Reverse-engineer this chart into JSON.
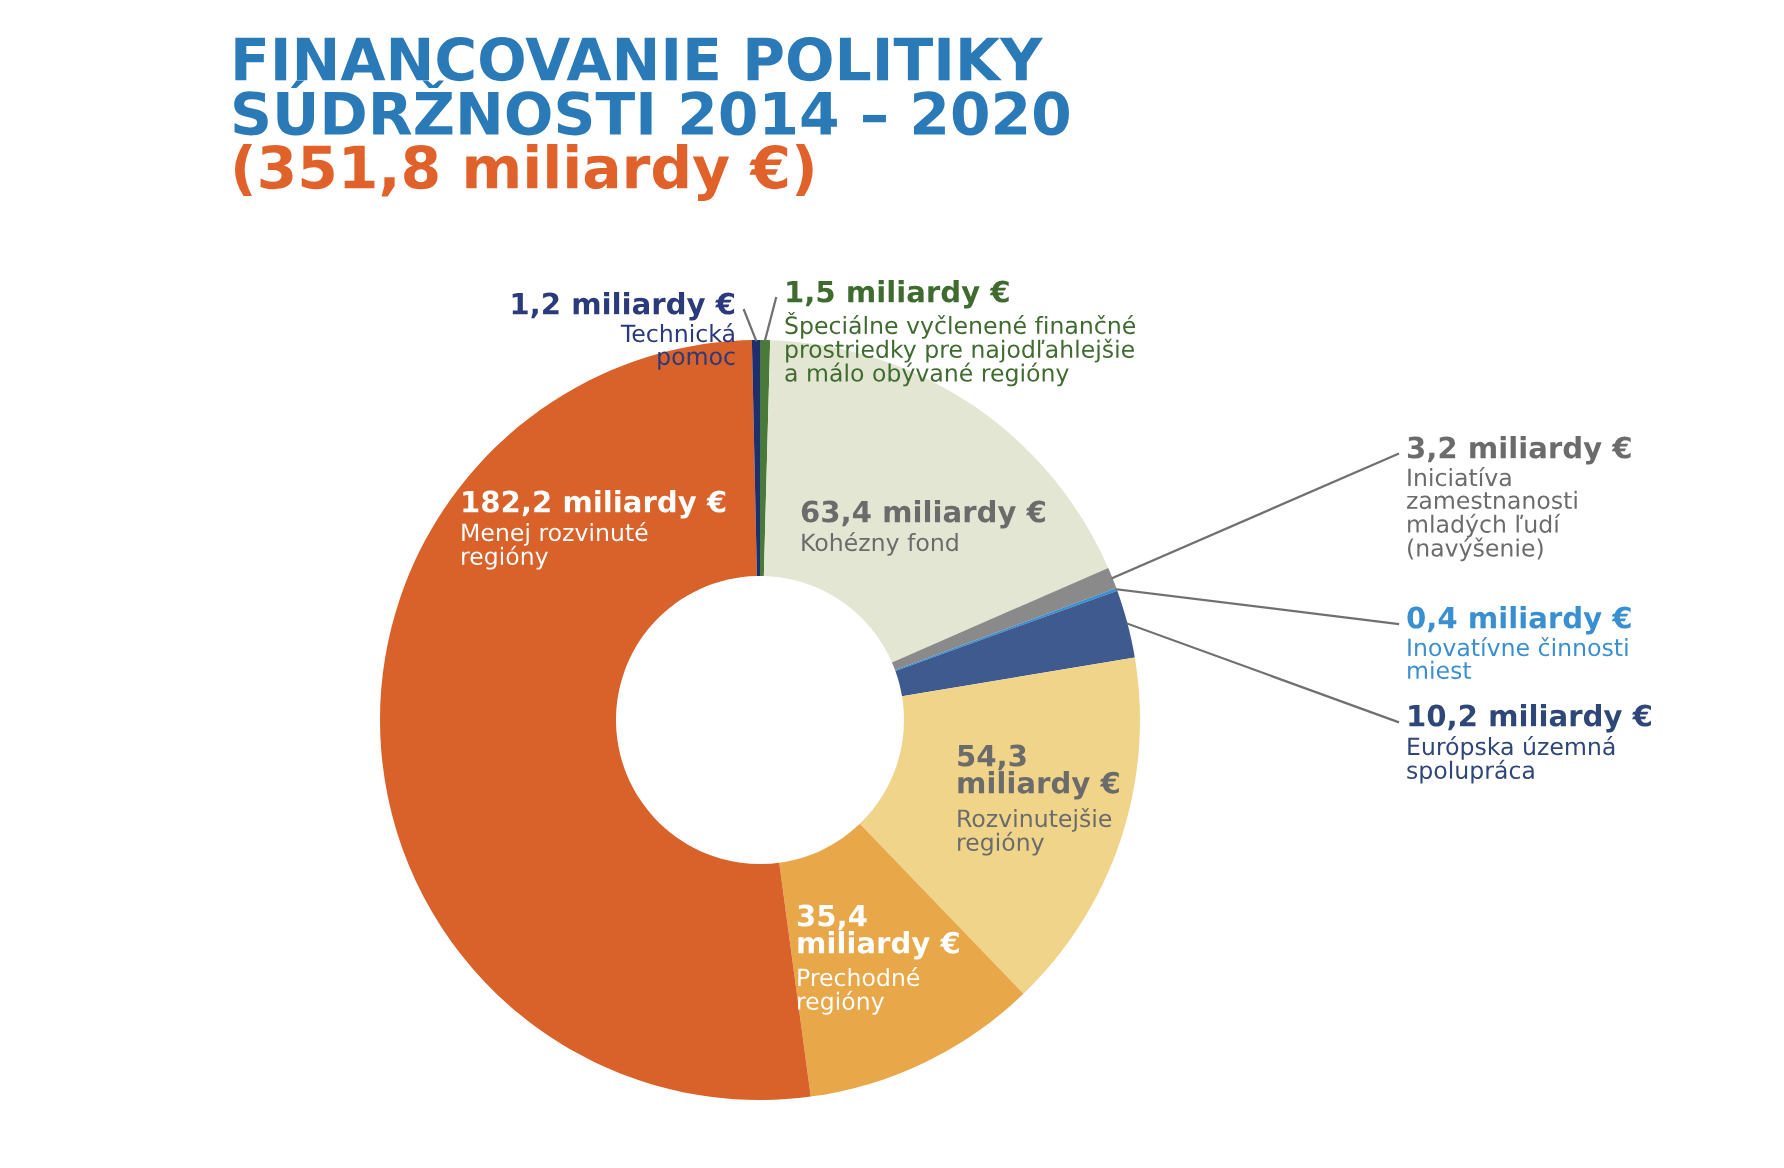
{
  "chart_data": {
    "type": "donut",
    "title": "FINANCOVANIE POLITIKY\nSÚDRŽNOSTI 2014 – 2020",
    "subtitle": "(351,8 miliardy €)",
    "categories": [
      "Špeciálne vyčlenené finančné\nprostriedky pre najodľahlejšie\na málo obývané regióny",
      "Kohézny fond",
      "Iniciatíva\nzamestnanosti\nmladých ľudí\n(navýšenie)",
      "Inovatívne činnosti\nmiest",
      "Európska územná\nspolupráca",
      "Rozvinutejšie\nregióny",
      "Prechodné\nregióny",
      "Menej rozvinuté\nregióny",
      "Technická\npomoc"
    ],
    "values": [
      1.5,
      63.4,
      3.2,
      0.4,
      10.2,
      54.3,
      35.4,
      182.2,
      1.2
    ],
    "value_labels": [
      "1,5 miliardy €",
      "63,4 miliardy €",
      "3,2 miliardy €",
      "0,4 miliardy €",
      "10,2 miliardy €",
      "54,3\nmiliardy €",
      "35,4\nmiliardy €",
      "182,2 miliardy €",
      "1,2 miliardy €"
    ],
    "colors": [
      "#4a7a3a",
      "#e3e6d3",
      "#8a8a8a",
      "#3a8fd0",
      "#3e5a8e",
      "#efd48a",
      "#e8a84a",
      "#d9612a",
      "#1f2f6e"
    ]
  }
}
